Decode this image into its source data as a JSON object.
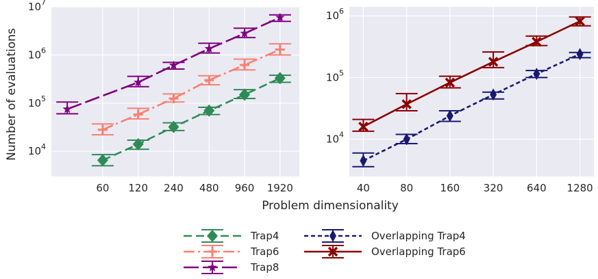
{
  "chart_data": [
    {
      "type": "line",
      "ylabel": "Number of evaluations",
      "xlabel": "Problem dimensionality",
      "x_scale": "log2",
      "y_scale": "log10",
      "x_ticks": [
        60,
        120,
        240,
        480,
        960,
        1920
      ],
      "xlim": [
        22,
        2800
      ],
      "ylim": [
        3000,
        10000000
      ],
      "y_ticks": [
        {
          "value": 10000,
          "base": "10",
          "exp": "4"
        },
        {
          "value": 100000,
          "base": "10",
          "exp": "5"
        },
        {
          "value": 1000000,
          "base": "10",
          "exp": "6"
        },
        {
          "value": 10000000,
          "base": "10",
          "exp": "7"
        }
      ],
      "grid": true,
      "series": [
        {
          "name": "Trap4",
          "color": "#2e8b57",
          "marker": "diamond",
          "dash": "12,6",
          "x": [
            60,
            120,
            240,
            480,
            960,
            1920
          ],
          "y": [
            6500,
            14000,
            32000,
            70000,
            150000,
            330000
          ],
          "err_low": [
            5000,
            11000,
            27000,
            58000,
            125000,
            270000
          ],
          "err_high": [
            8500,
            17000,
            39000,
            82000,
            190000,
            380000
          ]
        },
        {
          "name": "Trap6",
          "color": "#fa8072",
          "marker": "plus",
          "dash": "16,5,3,5",
          "x": [
            30,
            60,
            120,
            240,
            480,
            960,
            1920
          ],
          "y": [
            null,
            28000,
            58000,
            125000,
            300000,
            620000,
            1300000
          ],
          "err_low": [
            null,
            22000,
            47000,
            105000,
            240000,
            490000,
            1000000
          ],
          "err_high": [
            null,
            37000,
            78000,
            155000,
            370000,
            820000,
            1700000
          ]
        },
        {
          "name": "Trap8",
          "color": "#800080",
          "marker": "star",
          "dash": "22,6",
          "x": [
            30,
            60,
            120,
            240,
            480,
            960,
            1920
          ],
          "y": [
            75000,
            null,
            270000,
            610000,
            1350000,
            2800000,
            6000000
          ],
          "err_low": [
            60000,
            null,
            220000,
            510000,
            1100000,
            2300000,
            5000000
          ],
          "err_high": [
            105000,
            null,
            360000,
            700000,
            1750000,
            3600000,
            6800000
          ]
        }
      ]
    },
    {
      "type": "line",
      "xlabel": "Problem dimensionality",
      "x_scale": "log2",
      "y_scale": "log10",
      "x_ticks": [
        40,
        80,
        160,
        320,
        640,
        1280
      ],
      "xlim": [
        32,
        1600
      ],
      "ylim": [
        2500,
        1400000
      ],
      "y_ticks": [
        {
          "value": 10000,
          "base": "10",
          "exp": "4"
        },
        {
          "value": 100000,
          "base": "10",
          "exp": "5"
        },
        {
          "value": 1000000,
          "base": "10",
          "exp": "6"
        }
      ],
      "grid": true,
      "series": [
        {
          "name": "Overlapping Trap4",
          "color": "#191970",
          "marker": "thin-diamond",
          "dash": "6,4",
          "x": [
            40,
            80,
            160,
            320,
            640,
            1280
          ],
          "y": [
            4500,
            10000,
            24000,
            53000,
            115000,
            240000
          ],
          "err_low": [
            3600,
            8500,
            19500,
            45000,
            100000,
            210000
          ],
          "err_high": [
            6000,
            12000,
            29000,
            58000,
            130000,
            255000
          ]
        },
        {
          "name": "Overlapping Trap6",
          "color": "#8b0000",
          "marker": "x",
          "dash": "",
          "x": [
            40,
            80,
            160,
            320,
            640,
            1280
          ],
          "y": [
            16000,
            37000,
            83000,
            180000,
            380000,
            820000
          ],
          "err_low": [
            13500,
            29000,
            68000,
            145000,
            330000,
            690000
          ],
          "err_high": [
            21000,
            55000,
            105000,
            260000,
            470000,
            960000
          ]
        }
      ]
    }
  ],
  "legend": {
    "left": [
      "Trap4",
      "Trap6",
      "Trap8"
    ],
    "right": [
      "Overlapping Trap4",
      "Overlapping Trap6"
    ]
  }
}
